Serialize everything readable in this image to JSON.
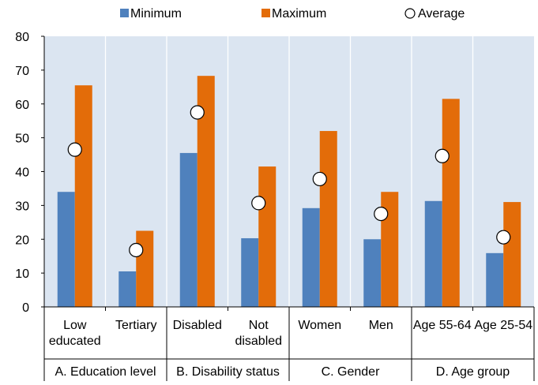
{
  "chart_data": {
    "type": "bar",
    "title": "",
    "xlabel": "",
    "ylabel": "",
    "ylim": [
      0,
      80
    ],
    "yticks": [
      0,
      10,
      20,
      30,
      40,
      50,
      60,
      70,
      80
    ],
    "grid": "vertical group separators",
    "legend_position": "top",
    "groups": [
      {
        "label": "A. Education level",
        "categories": [
          "Low educated",
          "Tertiary"
        ]
      },
      {
        "label": "B. Disability status",
        "categories": [
          "Disabled",
          "Not disabled"
        ]
      },
      {
        "label": "C. Gender",
        "categories": [
          "Women",
          "Men"
        ]
      },
      {
        "label": "D. Age group",
        "categories": [
          "Age 55-64",
          "Age 25-54"
        ]
      }
    ],
    "categories": [
      "Low educated",
      "Tertiary",
      "Disabled",
      "Not disabled",
      "Women",
      "Men",
      "Age 55-64",
      "Age 25-54"
    ],
    "category_labels": [
      [
        "Low",
        "educated"
      ],
      [
        "Tertiary"
      ],
      [
        "Disabled"
      ],
      [
        "Not",
        "disabled"
      ],
      [
        "Women"
      ],
      [
        "Men"
      ],
      [
        "Age 55-64"
      ],
      [
        "Age 25-54"
      ]
    ],
    "series": [
      {
        "name": "Minimum",
        "type": "bar",
        "color": "#4f81bd",
        "values": [
          34,
          10.5,
          45.5,
          20.3,
          29.2,
          20,
          31.3,
          15.9
        ]
      },
      {
        "name": "Maximum",
        "type": "bar",
        "color": "#e36c09",
        "values": [
          65.5,
          22.5,
          68.3,
          41.5,
          52,
          34,
          61.5,
          31
        ]
      },
      {
        "name": "Average",
        "type": "marker",
        "color": "#ffffff",
        "values": [
          46.5,
          16.8,
          57.5,
          30.7,
          37.8,
          27.5,
          44.6,
          20.6
        ]
      }
    ],
    "colors": {
      "plot_background": "#dbe5f1",
      "separator": "#ffffff"
    }
  }
}
